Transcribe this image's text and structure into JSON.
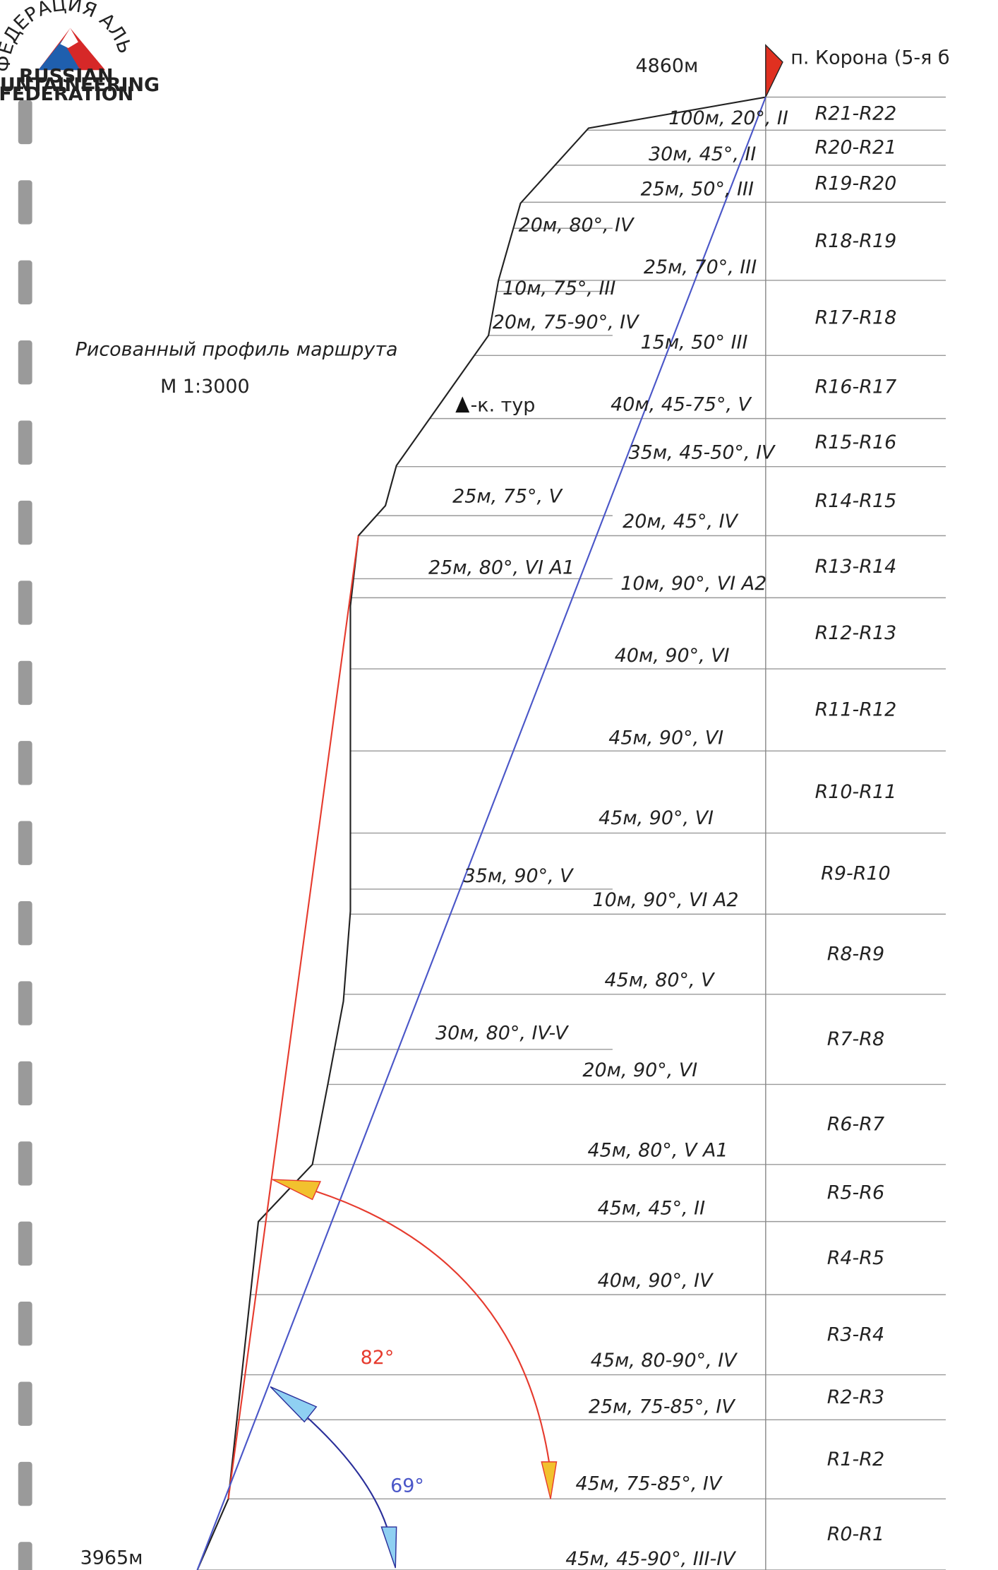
{
  "logo": {
    "arc_text": "ФЕДЕРАЦИЯ АЛЬПИНИЗМА РОССИИ",
    "line1": "RUSSIAN",
    "line2": "MOUNTAINEERING",
    "line3": "FEDERATION"
  },
  "summit": {
    "elevation": "4860м",
    "name": "п. Корона (5-я б"
  },
  "base": {
    "elevation": "3965м"
  },
  "title": "Рисованный профиль маршрута",
  "scale": "М 1:3000",
  "legend": "-к. тур",
  "pitches": [
    "100м, 20°, II",
    "30м, 45°, II",
    "25м, 50°, III",
    "20м, 80°, IV",
    "25м, 70°, III",
    "10м, 75°, III",
    "20м, 75-90°, IV",
    "15м, 50° III",
    "40м, 45-75°, V",
    "35м, 45-50°, IV",
    "25м, 75°, V",
    "20м, 45°, IV",
    "25м, 80°, VI A1",
    "10м, 90°, VI A2",
    "40м, 90°, VI",
    "45м, 90°, VI",
    "45м, 90°, VI",
    "35м, 90°, V",
    "10м, 90°, VI A2",
    "45м, 80°, V",
    "30м, 80°, IV-V",
    "20м, 90°, VI",
    "45м, 80°, V A1",
    "45м, 45°, II",
    "40м, 90°, IV",
    "45м, 80-90°, IV",
    "25м, 75-85°, IV",
    "45м, 75-85°, IV",
    "45м, 45-90°, III-IV"
  ],
  "segments": [
    "R21-R22",
    "R20-R21",
    "R19-R20",
    "R18-R19",
    "R17-R18",
    "R16-R17",
    "R15-R16",
    "R14-R15",
    "R13-R14",
    "R12-R13",
    "R11-R12",
    "R10-R11",
    "R9-R10",
    "R8-R9",
    "R7-R8",
    "R6-R7",
    "R5-R6",
    "R4-R5",
    "R3-R4",
    "R2-R3",
    "R1-R2",
    "R0-R1"
  ],
  "angles": {
    "wall": "82°",
    "route": "69°"
  }
}
